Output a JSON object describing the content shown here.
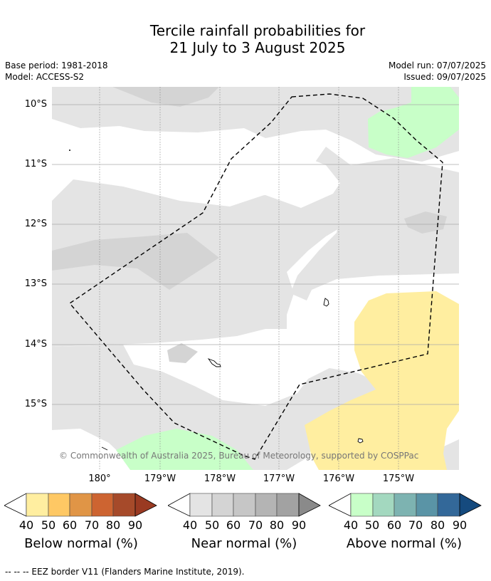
{
  "title": {
    "line1": "Tercile rainfall probabilities for",
    "line2": "21 July to 3 August 2025"
  },
  "meta": {
    "base_period": "Base period: 1981-2018",
    "model": "Model: ACCESS-S2",
    "model_run": "Model run: 07/07/2025",
    "issued": "Issued: 09/07/2025"
  },
  "map": {
    "lat_labels": [
      "10°S",
      "11°S",
      "12°S",
      "13°S",
      "14°S",
      "15°S"
    ],
    "lon_labels": [
      "180°",
      "179°W",
      "178°W",
      "177°W",
      "176°W",
      "175°W"
    ],
    "credit": "© Commonwealth of Australia 2025, Bureau of Meteorology, supported by COSPPac",
    "colors": {
      "near_normal_40": "#e4e4e4",
      "near_normal_50": "#d4d4d4",
      "below_normal_40": "#ffeea0",
      "above_normal_40": "#c8ffc8"
    }
  },
  "colorbars": [
    {
      "title": "Below normal (%)",
      "ticks": [
        "40",
        "50",
        "60",
        "70",
        "80",
        "90"
      ],
      "colors": [
        "#ffeea0",
        "#fec864",
        "#e09546",
        "#cd6431",
        "#a64a2a",
        "#9a3a22"
      ]
    },
    {
      "title": "Near normal (%)",
      "ticks": [
        "40",
        "50",
        "60",
        "70",
        "80",
        "90"
      ],
      "colors": [
        "#e4e4e4",
        "#d4d4d4",
        "#c6c6c6",
        "#b4b4b4",
        "#a2a2a2",
        "#8a8a8a"
      ]
    },
    {
      "title": "Above normal (%)",
      "ticks": [
        "40",
        "50",
        "60",
        "70",
        "80",
        "90"
      ],
      "colors": [
        "#c8ffc8",
        "#a3d8bf",
        "#7db3b1",
        "#5a94a6",
        "#336899",
        "#154a7e"
      ]
    }
  ],
  "footnote": "-- -- -- EEZ border V11 (Flanders Marine Institute, 2019)."
}
